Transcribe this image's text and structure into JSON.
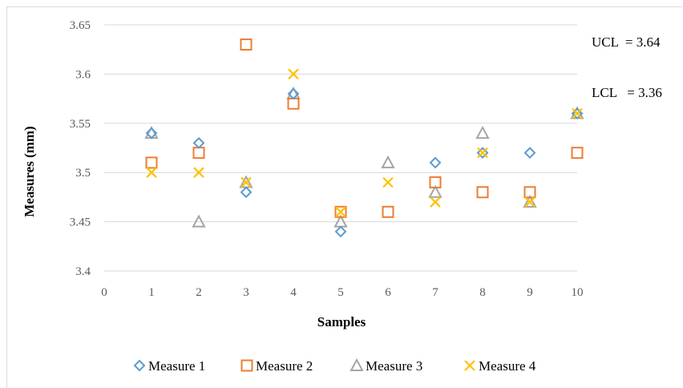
{
  "chart_data": {
    "type": "scatter",
    "xlabel": "Samples",
    "ylabel": "Measures  (mm)",
    "xlim": [
      0,
      10
    ],
    "ylim": [
      3.4,
      3.65
    ],
    "x_ticks": [
      "0",
      "1",
      "2",
      "3",
      "4",
      "5",
      "6",
      "7",
      "8",
      "9",
      "10"
    ],
    "y_ticks": [
      "3.4",
      "3.45",
      "3.5",
      "3.55",
      "3.6",
      "3.65"
    ],
    "grid": true,
    "legend_position": "bottom",
    "annotations": [
      "UCL  = 3.64",
      "LCL   = 3.36"
    ],
    "x": [
      1,
      2,
      3,
      4,
      5,
      6,
      7,
      8,
      9,
      10
    ],
    "series": [
      {
        "name": "Measure 1",
        "marker": "diamond",
        "color": "#5b9bd5",
        "values": [
          3.54,
          3.53,
          3.48,
          3.58,
          3.44,
          null,
          3.51,
          3.52,
          3.52,
          3.56
        ]
      },
      {
        "name": "Measure 2",
        "marker": "square",
        "color": "#ed7d31",
        "values": [
          3.51,
          3.52,
          3.63,
          3.57,
          3.46,
          3.46,
          3.49,
          3.48,
          3.48,
          3.52
        ]
      },
      {
        "name": "Measure 3",
        "marker": "triangle",
        "color": "#a5a5a5",
        "values": [
          3.54,
          3.45,
          3.49,
          3.58,
          3.45,
          3.51,
          3.48,
          3.54,
          3.47,
          3.56
        ]
      },
      {
        "name": "Measure 4",
        "marker": "x",
        "color": "#ffc000",
        "values": [
          3.5,
          3.5,
          3.49,
          3.6,
          3.46,
          3.49,
          3.47,
          3.52,
          3.47,
          3.56
        ]
      }
    ]
  }
}
